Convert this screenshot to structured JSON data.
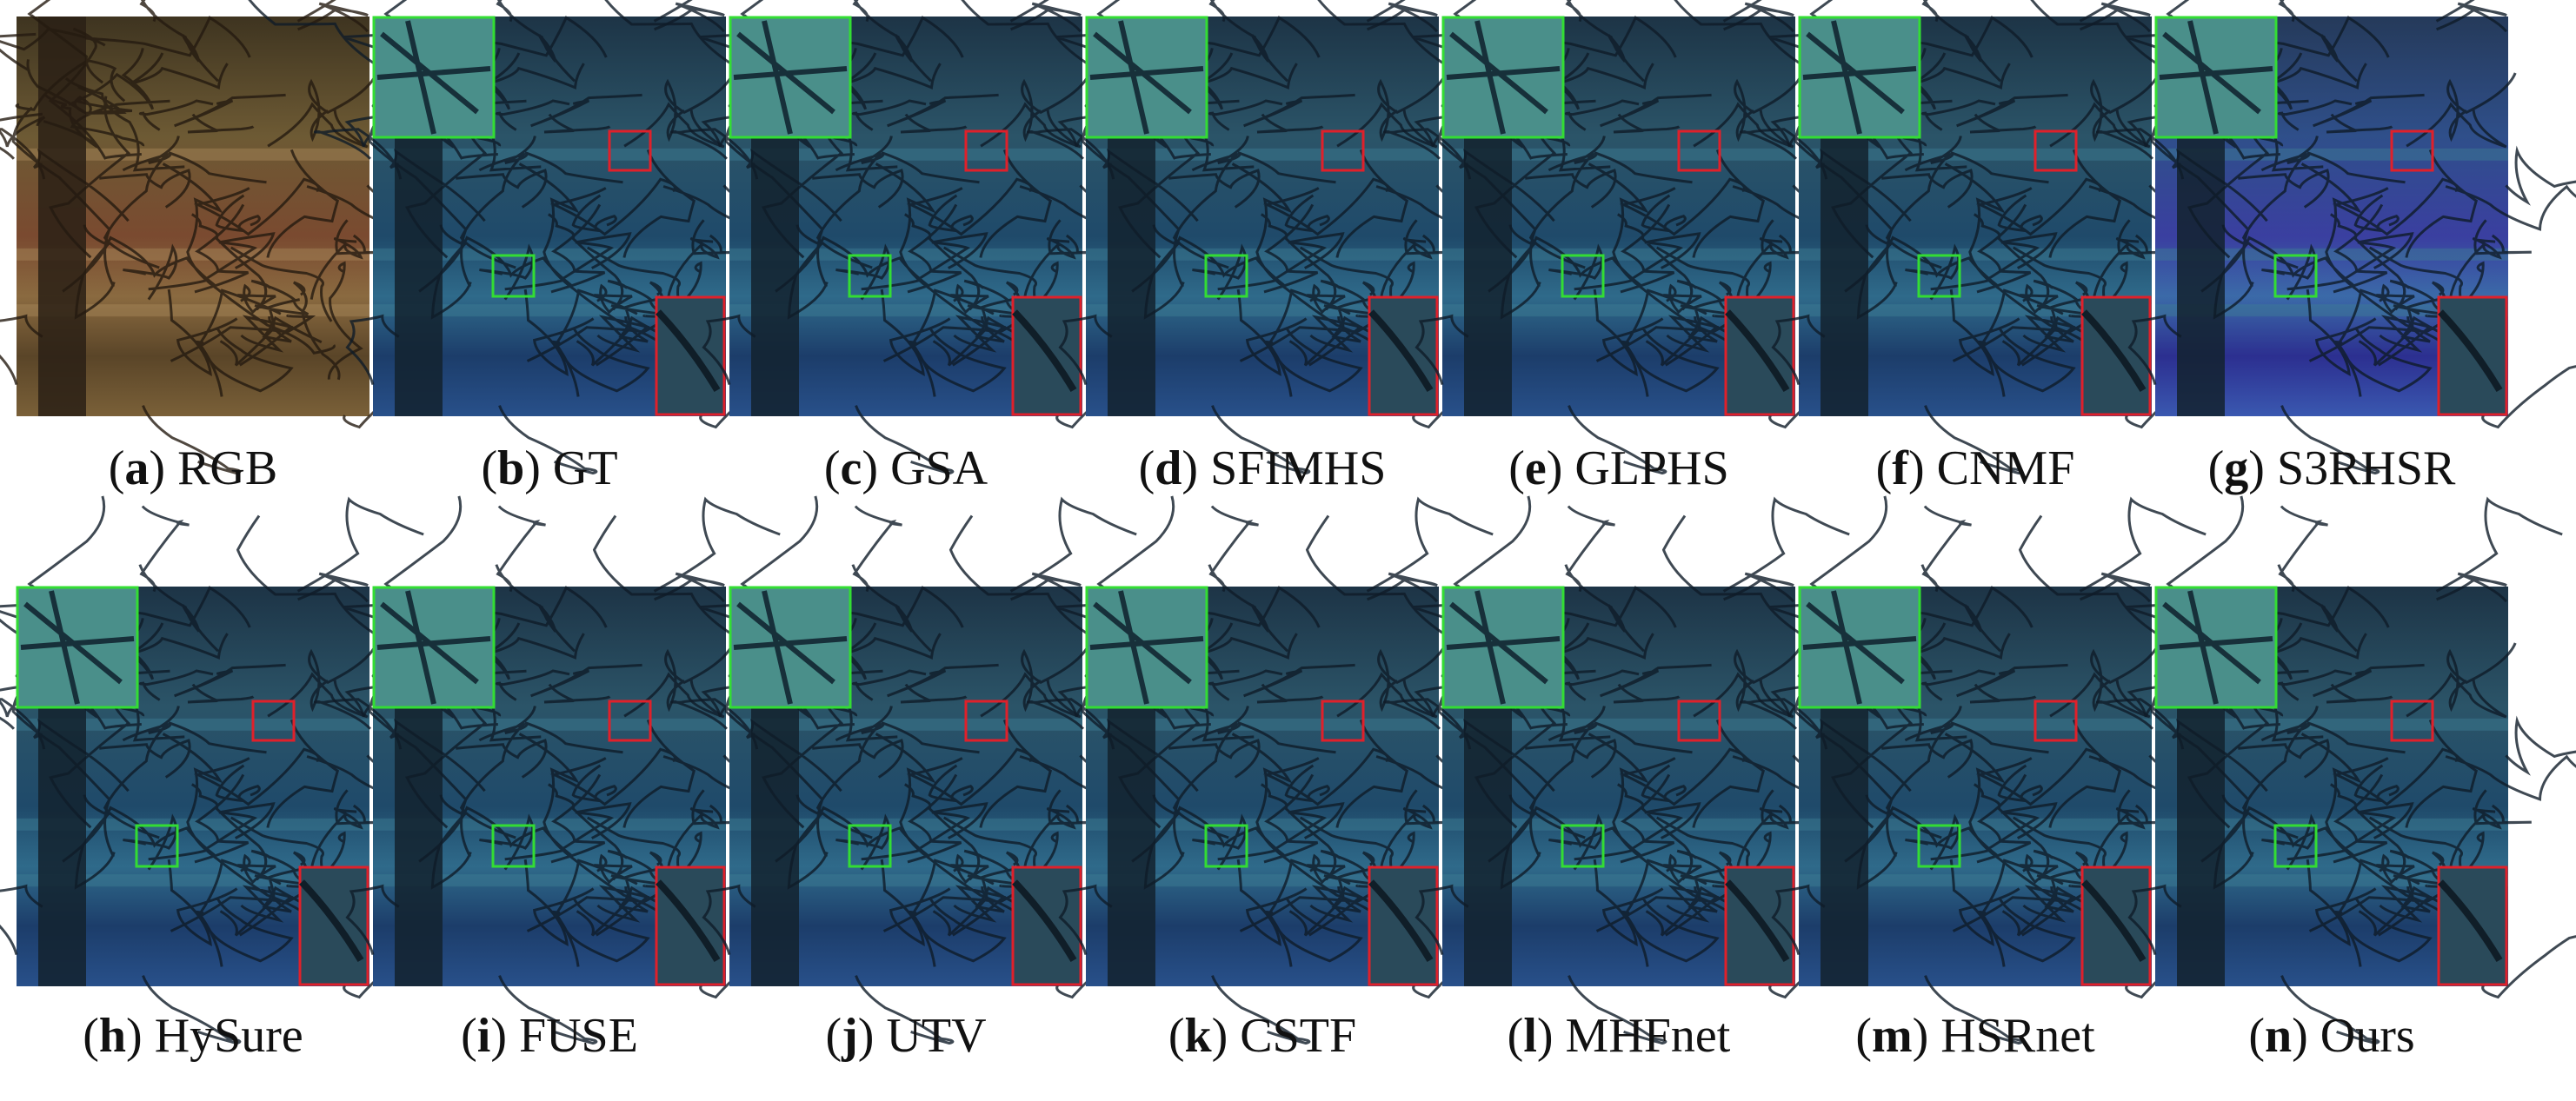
{
  "label_open": "(",
  "label_close": ")",
  "panels": [
    {
      "letter": "a",
      "name": "RGB"
    },
    {
      "letter": "b",
      "name": "GT"
    },
    {
      "letter": "c",
      "name": "GSA"
    },
    {
      "letter": "d",
      "name": "SFIMHS"
    },
    {
      "letter": "e",
      "name": "GLPHS"
    },
    {
      "letter": "f",
      "name": "CNMF"
    },
    {
      "letter": "g",
      "name": "S3RHSR"
    },
    {
      "letter": "h",
      "name": "HySure"
    },
    {
      "letter": "i",
      "name": "FUSE"
    },
    {
      "letter": "j",
      "name": "UTV"
    },
    {
      "letter": "k",
      "name": "CSTF"
    },
    {
      "letter": "l",
      "name": "MHFnet"
    },
    {
      "letter": "m",
      "name": "HSRnet"
    },
    {
      "letter": "n",
      "name": "Ours"
    }
  ]
}
